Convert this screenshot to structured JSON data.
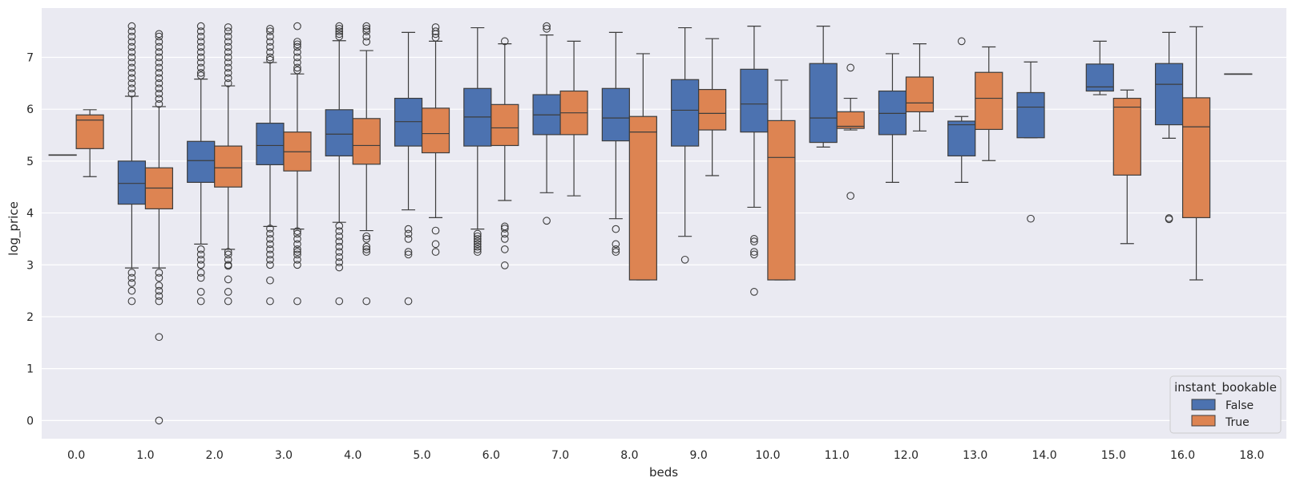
{
  "chart_data": {
    "type": "box",
    "xlabel": "beds",
    "ylabel": "log_price",
    "ylim": [
      -0.35,
      7.95
    ],
    "yticks": [
      0,
      1,
      2,
      3,
      4,
      5,
      6,
      7
    ],
    "grid": true,
    "categories": [
      "0.0",
      "1.0",
      "2.0",
      "3.0",
      "4.0",
      "5.0",
      "6.0",
      "7.0",
      "8.0",
      "9.0",
      "10.0",
      "11.0",
      "12.0",
      "13.0",
      "14.0",
      "15.0",
      "16.0",
      "18.0"
    ],
    "legend": {
      "title": "instant_bookable",
      "placement": "lower-right"
    },
    "series": [
      {
        "name": "False",
        "color": "#4c72b0",
        "boxes": [
          {
            "category": "0.0",
            "q1": 5.12,
            "median": 5.12,
            "q3": 5.12,
            "whislo": 5.12,
            "whishi": 5.12,
            "fliers": []
          },
          {
            "category": "1.0",
            "q1": 4.17,
            "median": 4.57,
            "q3": 5.0,
            "whislo": 2.94,
            "whishi": 6.25,
            "fliers": [
              7.6,
              7.5,
              7.4,
              7.3,
              7.2,
              7.1,
              7.0,
              6.9,
              6.8,
              6.7,
              6.6,
              6.5,
              6.4,
              6.3,
              2.85,
              2.75,
              2.65,
              2.5,
              2.3
            ]
          },
          {
            "category": "2.0",
            "q1": 4.59,
            "median": 5.01,
            "q3": 5.38,
            "whislo": 3.4,
            "whishi": 6.58,
            "fliers": [
              7.6,
              7.5,
              7.4,
              7.3,
              7.2,
              7.1,
              7.0,
              6.9,
              6.8,
              6.7,
              6.65,
              3.3,
              3.2,
              3.1,
              3.0,
              2.85,
              2.75,
              2.48,
              2.3
            ]
          },
          {
            "category": "3.0",
            "q1": 4.93,
            "median": 5.3,
            "q3": 5.73,
            "whislo": 3.74,
            "whishi": 6.9,
            "fliers": [
              7.55,
              7.5,
              7.4,
              7.3,
              7.2,
              7.1,
              7.0,
              6.95,
              3.7,
              3.6,
              3.5,
              3.4,
              3.3,
              3.2,
              3.1,
              3.0,
              2.7,
              2.3
            ]
          },
          {
            "category": "4.0",
            "q1": 5.1,
            "median": 5.52,
            "q3": 5.99,
            "whislo": 3.82,
            "whishi": 7.32,
            "fliers": [
              7.6,
              7.55,
              7.5,
              7.45,
              7.4,
              3.75,
              3.65,
              3.55,
              3.45,
              3.35,
              3.25,
              3.15,
              3.05,
              2.95,
              2.3
            ]
          },
          {
            "category": "5.0",
            "q1": 5.29,
            "median": 5.76,
            "q3": 6.21,
            "whislo": 4.06,
            "whishi": 7.48,
            "fliers": [
              3.69,
              3.6,
              3.5,
              3.25,
              3.2,
              2.3
            ]
          },
          {
            "category": "6.0",
            "q1": 5.29,
            "median": 5.85,
            "q3": 6.4,
            "whislo": 3.69,
            "whishi": 7.57,
            "fliers": [
              3.6,
              3.55,
              3.5,
              3.45,
              3.4,
              3.35,
              3.3,
              3.25
            ]
          },
          {
            "category": "7.0",
            "q1": 5.51,
            "median": 5.89,
            "q3": 6.28,
            "whislo": 4.39,
            "whishi": 7.43,
            "fliers": [
              7.6,
              7.55,
              3.85
            ]
          },
          {
            "category": "8.0",
            "q1": 5.39,
            "median": 5.83,
            "q3": 6.4,
            "whislo": 3.89,
            "whishi": 7.48,
            "fliers": [
              3.69,
              3.4,
              3.3,
              3.25
            ]
          },
          {
            "category": "9.0",
            "q1": 5.29,
            "median": 5.98,
            "q3": 6.57,
            "whislo": 3.55,
            "whishi": 7.57,
            "fliers": [
              3.1
            ]
          },
          {
            "category": "10.0",
            "q1": 5.56,
            "median": 6.1,
            "q3": 6.77,
            "whislo": 4.11,
            "whishi": 7.6,
            "fliers": [
              3.5,
              3.45,
              3.25,
              3.2,
              2.48
            ]
          },
          {
            "category": "11.0",
            "q1": 5.36,
            "median": 5.83,
            "q3": 6.88,
            "whislo": 5.27,
            "whishi": 7.6,
            "fliers": []
          },
          {
            "category": "12.0",
            "q1": 5.51,
            "median": 5.92,
            "q3": 6.35,
            "whislo": 4.59,
            "whishi": 7.07,
            "fliers": []
          },
          {
            "category": "13.0",
            "q1": 5.1,
            "median": 5.7,
            "q3": 5.77,
            "whislo": 4.59,
            "whishi": 5.86,
            "fliers": [
              7.31
            ]
          },
          {
            "category": "14.0",
            "q1": 5.45,
            "median": 6.04,
            "q3": 6.32,
            "whislo": 5.45,
            "whishi": 6.91,
            "fliers": [
              3.89
            ]
          },
          {
            "category": "15.0",
            "q1": 6.35,
            "median": 6.43,
            "q3": 6.87,
            "whislo": 6.28,
            "whishi": 7.31,
            "fliers": []
          },
          {
            "category": "16.0",
            "q1": 5.7,
            "median": 6.48,
            "q3": 6.88,
            "whislo": 5.44,
            "whishi": 7.48,
            "fliers": [
              3.9,
              3.88
            ]
          },
          {
            "category": "18.0",
            "q1": 6.68,
            "median": 6.68,
            "q3": 6.68,
            "whislo": 6.68,
            "whishi": 6.68,
            "fliers": []
          }
        ]
      },
      {
        "name": "True",
        "color": "#dd8452",
        "boxes": [
          {
            "category": "0.0",
            "q1": 5.24,
            "median": 5.79,
            "q3": 5.89,
            "whislo": 4.7,
            "whishi": 5.99,
            "fliers": []
          },
          {
            "category": "1.0",
            "q1": 4.08,
            "median": 4.48,
            "q3": 4.87,
            "whislo": 2.94,
            "whishi": 6.05,
            "fliers": [
              7.45,
              7.4,
              7.3,
              7.2,
              7.1,
              7.0,
              6.9,
              6.8,
              6.7,
              6.6,
              6.5,
              6.4,
              6.3,
              6.2,
              6.1,
              2.85,
              2.75,
              2.6,
              2.5,
              2.4,
              2.3,
              1.61,
              0.0
            ]
          },
          {
            "category": "2.0",
            "q1": 4.5,
            "median": 4.87,
            "q3": 5.29,
            "whislo": 3.3,
            "whishi": 6.45,
            "fliers": [
              7.58,
              7.5,
              7.4,
              7.3,
              7.2,
              7.1,
              7.0,
              6.9,
              6.8,
              6.7,
              6.6,
              6.5,
              3.25,
              3.2,
              3.1,
              3.0,
              2.98,
              2.72,
              2.48,
              2.3
            ]
          },
          {
            "category": "3.0",
            "q1": 4.81,
            "median": 5.18,
            "q3": 5.56,
            "whislo": 3.69,
            "whishi": 6.68,
            "fliers": [
              7.6,
              7.3,
              7.25,
              7.2,
              7.1,
              7.0,
              6.9,
              6.8,
              6.75,
              3.65,
              3.6,
              3.5,
              3.4,
              3.3,
              3.25,
              3.2,
              3.1,
              3.0,
              2.3
            ]
          },
          {
            "category": "4.0",
            "q1": 4.94,
            "median": 5.3,
            "q3": 5.82,
            "whislo": 3.66,
            "whishi": 7.13,
            "fliers": [
              7.6,
              7.55,
              7.5,
              7.4,
              7.3,
              3.55,
              3.5,
              3.35,
              3.3,
              3.25,
              2.3
            ]
          },
          {
            "category": "5.0",
            "q1": 5.16,
            "median": 5.53,
            "q3": 6.02,
            "whislo": 3.91,
            "whishi": 7.31,
            "fliers": [
              7.58,
              7.5,
              7.45,
              7.38,
              3.66,
              3.4,
              3.25
            ]
          },
          {
            "category": "6.0",
            "q1": 5.3,
            "median": 5.64,
            "q3": 6.09,
            "whislo": 4.24,
            "whishi": 7.26,
            "fliers": [
              7.31,
              3.74,
              3.7,
              3.6,
              3.5,
              3.3,
              2.99
            ]
          },
          {
            "category": "7.0",
            "q1": 5.51,
            "median": 5.93,
            "q3": 6.35,
            "whislo": 4.33,
            "whishi": 7.31,
            "fliers": []
          },
          {
            "category": "8.0",
            "q1": 2.71,
            "median": 5.56,
            "q3": 5.86,
            "whislo": 2.71,
            "whishi": 7.07,
            "fliers": []
          },
          {
            "category": "9.0",
            "q1": 5.6,
            "median": 5.92,
            "q3": 6.38,
            "whislo": 4.72,
            "whishi": 7.36,
            "fliers": []
          },
          {
            "category": "10.0",
            "q1": 2.71,
            "median": 5.07,
            "q3": 5.78,
            "whislo": 2.71,
            "whishi": 6.56,
            "fliers": []
          },
          {
            "category": "11.0",
            "q1": 5.63,
            "median": 5.67,
            "q3": 5.95,
            "whislo": 5.6,
            "whishi": 6.21,
            "fliers": [
              6.8,
              4.33
            ]
          },
          {
            "category": "12.0",
            "q1": 5.95,
            "median": 6.12,
            "q3": 6.62,
            "whislo": 5.58,
            "whishi": 7.26,
            "fliers": []
          },
          {
            "category": "13.0",
            "q1": 5.61,
            "median": 6.21,
            "q3": 6.71,
            "whislo": 5.01,
            "whishi": 7.2,
            "fliers": []
          },
          {
            "category": "15.0",
            "q1": 4.73,
            "median": 6.04,
            "q3": 6.21,
            "whislo": 3.41,
            "whishi": 6.37,
            "fliers": []
          },
          {
            "category": "16.0",
            "q1": 3.91,
            "median": 5.66,
            "q3": 6.22,
            "whislo": 2.71,
            "whishi": 7.59,
            "fliers": []
          }
        ]
      }
    ]
  }
}
